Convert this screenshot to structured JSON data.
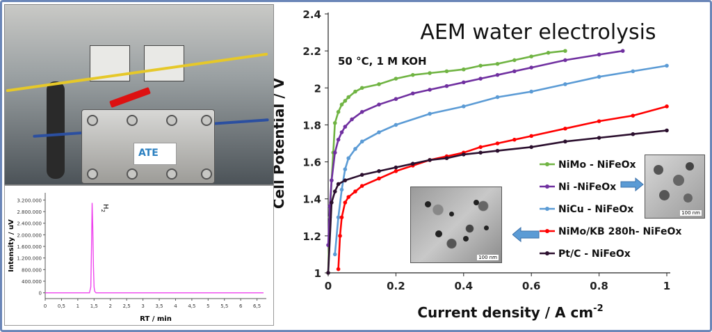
{
  "chart_data": [
    {
      "type": "line",
      "title": "AEM water electrolysis",
      "annotation": "50 °C, 1 M KOH",
      "xlabel": "Current density / A cm",
      "xlabel_sup": "-2",
      "ylabel": "Cell Potential / V",
      "xlim": [
        0,
        1
      ],
      "ylim": [
        1,
        2.4
      ],
      "xticks": [
        0,
        0.2,
        0.4,
        0.6,
        0.8,
        1
      ],
      "xticklabels": [
        "0",
        "0.2",
        "0.4",
        "0.6",
        "0.8",
        "1"
      ],
      "yticks": [
        1,
        1.2,
        1.4,
        1.6,
        1.8,
        2,
        2.2,
        2.4
      ],
      "yticklabels": [
        "1",
        "1.2",
        "1.4",
        "1.6",
        "1.8",
        "2",
        "2.2",
        "2.4"
      ],
      "grid": false,
      "legend_position": "right",
      "series": [
        {
          "name": "NiMo - NiFeOx",
          "color": "#70b443",
          "x": [
            0,
            0.005,
            0.01,
            0.015,
            0.02,
            0.03,
            0.04,
            0.05,
            0.06,
            0.08,
            0.1,
            0.15,
            0.2,
            0.25,
            0.3,
            0.35,
            0.4,
            0.45,
            0.5,
            0.55,
            0.6,
            0.65,
            0.7
          ],
          "y": [
            1.0,
            1.3,
            1.5,
            1.65,
            1.81,
            1.87,
            1.91,
            1.93,
            1.95,
            1.98,
            2.0,
            2.02,
            2.05,
            2.07,
            2.08,
            2.09,
            2.1,
            2.12,
            2.13,
            2.15,
            2.17,
            2.19,
            2.2
          ]
        },
        {
          "name": "Ni -NiFeOx",
          "color": "#7030a0",
          "x": [
            0,
            0.005,
            0.01,
            0.02,
            0.03,
            0.04,
            0.05,
            0.07,
            0.1,
            0.15,
            0.2,
            0.25,
            0.3,
            0.35,
            0.4,
            0.45,
            0.5,
            0.55,
            0.6,
            0.7,
            0.8,
            0.87
          ],
          "y": [
            1.15,
            1.36,
            1.5,
            1.65,
            1.72,
            1.76,
            1.79,
            1.83,
            1.87,
            1.91,
            1.94,
            1.97,
            1.99,
            2.01,
            2.03,
            2.05,
            2.07,
            2.09,
            2.11,
            2.15,
            2.18,
            2.2
          ]
        },
        {
          "name": "NiCu - NiFeOx",
          "color": "#5b9bd5",
          "x": [
            0.02,
            0.03,
            0.04,
            0.05,
            0.06,
            0.08,
            0.1,
            0.15,
            0.2,
            0.3,
            0.4,
            0.5,
            0.6,
            0.7,
            0.8,
            0.9,
            1.0
          ],
          "y": [
            1.1,
            1.3,
            1.45,
            1.56,
            1.62,
            1.67,
            1.71,
            1.76,
            1.8,
            1.86,
            1.9,
            1.95,
            1.98,
            2.02,
            2.06,
            2.09,
            2.12
          ]
        },
        {
          "name": "NiMo/KB  280h- NiFeOx",
          "color": "#ff0000",
          "x": [
            0.03,
            0.035,
            0.04,
            0.05,
            0.06,
            0.08,
            0.1,
            0.15,
            0.2,
            0.25,
            0.3,
            0.35,
            0.4,
            0.45,
            0.5,
            0.55,
            0.6,
            0.7,
            0.8,
            0.9,
            1.0
          ],
          "y": [
            1.02,
            1.2,
            1.3,
            1.38,
            1.41,
            1.44,
            1.47,
            1.51,
            1.55,
            1.58,
            1.61,
            1.63,
            1.65,
            1.68,
            1.7,
            1.72,
            1.74,
            1.78,
            1.82,
            1.85,
            1.9
          ]
        },
        {
          "name": "Pt/C - NiFeOx",
          "color": "#2b0f2e",
          "x": [
            0,
            0.01,
            0.02,
            0.03,
            0.05,
            0.1,
            0.15,
            0.2,
            0.25,
            0.3,
            0.35,
            0.4,
            0.45,
            0.5,
            0.6,
            0.7,
            0.8,
            0.9,
            1.0
          ],
          "y": [
            1.0,
            1.38,
            1.44,
            1.48,
            1.5,
            1.53,
            1.55,
            1.57,
            1.59,
            1.61,
            1.62,
            1.64,
            1.65,
            1.66,
            1.68,
            1.71,
            1.73,
            1.75,
            1.77
          ]
        }
      ]
    },
    {
      "type": "line",
      "xlabel": "RT / min",
      "ylabel": "Intensity / uV",
      "peak_label": "H",
      "peak_label_sub": "2",
      "xlim": [
        0,
        6.7
      ],
      "ylim": [
        -200000,
        3400000
      ],
      "xticks": [
        0,
        0.5,
        1,
        1.5,
        2,
        2.5,
        3,
        3.5,
        4,
        4.5,
        5,
        5.5,
        6,
        6.5
      ],
      "xticklabels": [
        "0",
        "0,5",
        "1",
        "1,5",
        "2",
        "2,5",
        "3",
        "3,5",
        "4",
        "4,5",
        "5",
        "5,5",
        "6",
        "6,5"
      ],
      "yticks": [
        0,
        400000,
        800000,
        1200000,
        1600000,
        2000000,
        2400000,
        2800000,
        3200000
      ],
      "yticklabels": [
        "0",
        "400.000",
        "800.000",
        "1.200.000",
        "1.600.000",
        "2.000.000",
        "2.400.000",
        "2.800.000",
        "3.200.000"
      ],
      "grid": false,
      "series": [
        {
          "color": "#ee44ee",
          "x": [
            0,
            1.3,
            1.36,
            1.4,
            1.42,
            1.44,
            1.46,
            1.48,
            1.5,
            1.52,
            1.56,
            6.7
          ],
          "y": [
            0,
            0,
            0,
            200000,
            1400000,
            3100000,
            2300000,
            900000,
            200000,
            50000,
            0,
            0
          ]
        }
      ]
    }
  ],
  "photo": {
    "logo_text": "ATE"
  },
  "tem_images": [
    {
      "scale": "100 nm"
    },
    {
      "scale": "100 nm"
    }
  ]
}
